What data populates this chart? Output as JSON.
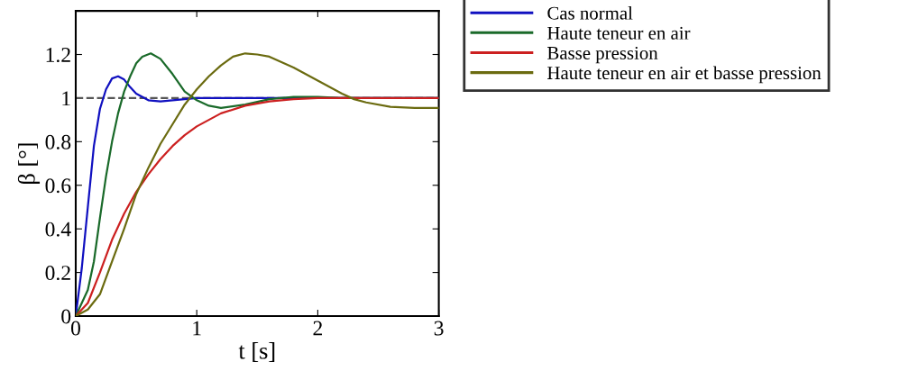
{
  "chart_data": {
    "type": "line",
    "xlabel": "t [s]",
    "ylabel": "β [°]",
    "xlim": [
      0,
      3
    ],
    "ylim": [
      0,
      1.4
    ],
    "xticks": [
      0,
      1,
      2,
      3
    ],
    "yticks": [
      0,
      0.2,
      0.4,
      0.6,
      0.8,
      {
        "value": 1,
        "label": "1"
      },
      1.2
    ],
    "grid": false,
    "legend": "right",
    "line_style": "solid",
    "marker": "none",
    "ref_lines": [
      {
        "axis": "y",
        "value": 1,
        "color": "#555555",
        "line_style": "dashed"
      }
    ],
    "series": [
      {
        "name": "Cas normal",
        "color": "#1010c0",
        "x": [
          0,
          0.05,
          0.1,
          0.15,
          0.2,
          0.25,
          0.3,
          0.35,
          0.4,
          0.45,
          0.5,
          0.6,
          0.7,
          0.8,
          1.0,
          3.0
        ],
        "values": [
          0,
          0.22,
          0.5,
          0.78,
          0.95,
          1.04,
          1.09,
          1.1,
          1.085,
          1.05,
          1.02,
          0.99,
          0.985,
          0.99,
          1.0,
          1.0
        ]
      },
      {
        "name": "Haute teneur en air",
        "color": "#1a6a2a",
        "x": [
          0,
          0.1,
          0.15,
          0.2,
          0.25,
          0.3,
          0.35,
          0.4,
          0.45,
          0.5,
          0.55,
          0.62,
          0.7,
          0.8,
          0.9,
          1.0,
          1.1,
          1.2,
          1.4,
          1.6,
          1.8,
          2.0,
          2.2,
          3.0
        ],
        "values": [
          0,
          0.12,
          0.25,
          0.45,
          0.64,
          0.8,
          0.93,
          1.03,
          1.1,
          1.16,
          1.19,
          1.205,
          1.18,
          1.11,
          1.03,
          0.99,
          0.965,
          0.955,
          0.97,
          0.995,
          1.005,
          1.005,
          1.0,
          1.0
        ]
      },
      {
        "name": "Basse pression",
        "color": "#cc2020",
        "x": [
          0,
          0.1,
          0.2,
          0.3,
          0.4,
          0.5,
          0.6,
          0.7,
          0.8,
          0.9,
          1.0,
          1.2,
          1.4,
          1.6,
          1.8,
          2.0,
          3.0
        ],
        "values": [
          0,
          0.06,
          0.2,
          0.35,
          0.47,
          0.57,
          0.65,
          0.72,
          0.78,
          0.83,
          0.87,
          0.93,
          0.965,
          0.985,
          0.995,
          1.0,
          1.0
        ]
      },
      {
        "name": "Haute teneur en air et basse pression",
        "color": "#6b6b10",
        "x": [
          0,
          0.1,
          0.2,
          0.3,
          0.4,
          0.5,
          0.6,
          0.7,
          0.8,
          0.9,
          1.0,
          1.1,
          1.2,
          1.3,
          1.4,
          1.5,
          1.6,
          1.8,
          2.0,
          2.2,
          2.3,
          2.4,
          2.6,
          2.8,
          3.0
        ],
        "values": [
          0,
          0.03,
          0.1,
          0.25,
          0.4,
          0.56,
          0.68,
          0.79,
          0.88,
          0.97,
          1.04,
          1.1,
          1.15,
          1.19,
          1.205,
          1.2,
          1.19,
          1.14,
          1.08,
          1.02,
          0.995,
          0.98,
          0.96,
          0.955,
          0.955
        ]
      }
    ]
  }
}
